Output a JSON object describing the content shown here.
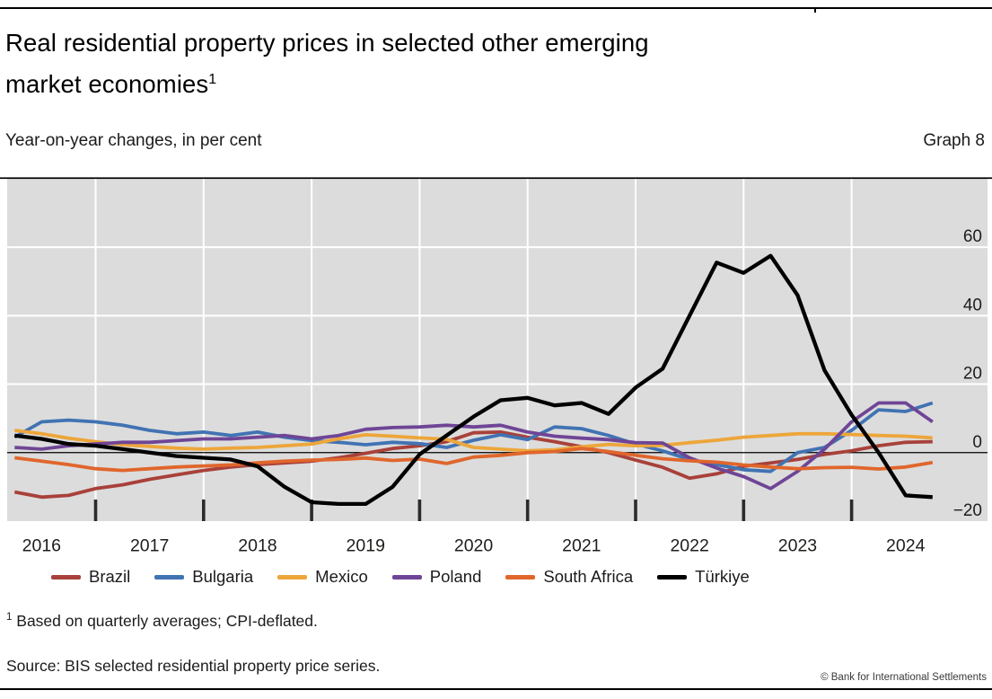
{
  "header": {
    "title_line1": "Real residential property prices in selected other emerging",
    "title_line2": "market economies",
    "title_footnote_marker": "1",
    "subtitle": "Year-on-year changes, in per cent",
    "graph_label": "Graph 8"
  },
  "chart_data": {
    "type": "line",
    "frequency": "quarterly",
    "x_start": "2016 Q1",
    "x_end": "2024 Q3",
    "plot_bg_color": "#dcdcdc",
    "gridline_color": "#ffffff",
    "zero_line": true,
    "ylim": [
      -20,
      80
    ],
    "grid_values": [
      60,
      40,
      20
    ],
    "y_ticks": [
      {
        "value": 60,
        "label": "60"
      },
      {
        "value": 40,
        "label": "40"
      },
      {
        "value": 20,
        "label": "20"
      },
      {
        "value": 0,
        "label": "0"
      },
      {
        "value": -20,
        "label": "−20"
      }
    ],
    "year_labels": [
      "2016",
      "2017",
      "2018",
      "2019",
      "2020",
      "2021",
      "2022",
      "2023",
      "2024"
    ],
    "legend_position": "bottom",
    "series": [
      {
        "name": "Brazil",
        "color": "#a8413a",
        "values": [
          -11.5,
          -13,
          -12.5,
          -10.5,
          -9.4,
          -7.8,
          -6.5,
          -5.2,
          -4.2,
          -3.5,
          -3,
          -2.5,
          -1.5,
          -0.2,
          1.2,
          2,
          3.2,
          5.8,
          6,
          4.5,
          3.2,
          1.7,
          0,
          -2.2,
          -4.3,
          -7.5,
          -6.2,
          -4,
          -3,
          -2,
          -0.5,
          0.5,
          2,
          3,
          3.2
        ]
      },
      {
        "name": "Bulgaria",
        "color": "#4173b3",
        "values": [
          4.5,
          9,
          9.5,
          9,
          8,
          6.5,
          5.5,
          6,
          5,
          6,
          4.5,
          3.5,
          3,
          2.3,
          3,
          2.6,
          1.5,
          3.6,
          5.2,
          3.8,
          7.5,
          7,
          5,
          2.5,
          0.5,
          -2,
          -3.5,
          -5,
          -5.5,
          0,
          1.5,
          6.5,
          12.5,
          12,
          14.5
        ]
      },
      {
        "name": "Mexico",
        "color": "#eda63a",
        "values": [
          6.5,
          5.5,
          4.2,
          3.2,
          2.3,
          1.8,
          1.3,
          1,
          1.3,
          1.5,
          2,
          2.5,
          4,
          5.2,
          4.8,
          4.3,
          3.9,
          1.5,
          1,
          0.5,
          0.8,
          1.7,
          2.4,
          2,
          2.1,
          2.9,
          3.6,
          4.5,
          5,
          5.5,
          5.5,
          5.3,
          5,
          4.8,
          4.3
        ]
      },
      {
        "name": "Poland",
        "color": "#6f4596",
        "values": [
          1.5,
          1,
          2,
          2.5,
          3,
          3,
          3.5,
          4,
          4,
          4.5,
          5,
          4,
          5,
          6.8,
          7.3,
          7.5,
          8,
          7.5,
          8,
          6,
          4.8,
          4.2,
          3.8,
          2.9,
          2.8,
          -1.5,
          -4.5,
          -7,
          -10.5,
          -5.5,
          1,
          9,
          14.5,
          14.5,
          9
        ]
      },
      {
        "name": "South Africa",
        "color": "#e0662c",
        "values": [
          -1.5,
          -2.5,
          -3.5,
          -4.7,
          -5.2,
          -4.7,
          -4.2,
          -3.9,
          -3.6,
          -3,
          -2.5,
          -2.2,
          -2,
          -1.6,
          -2.3,
          -1.9,
          -3.2,
          -1.3,
          -0.8,
          0,
          0.3,
          1.2,
          0.3,
          -0.8,
          -1.8,
          -2.4,
          -2.8,
          -3.6,
          -4.2,
          -4.7,
          -4.4,
          -4.3,
          -4.8,
          -4.2,
          -2.9
        ]
      },
      {
        "name": "Türkiye",
        "color": "#000000",
        "values": [
          5,
          4,
          2.5,
          2,
          1,
          0,
          -1,
          -1.5,
          -2,
          -4,
          -10,
          -14.5,
          -15,
          -15,
          -10,
          -0.5,
          5,
          10.5,
          15.3,
          16,
          13.8,
          14.5,
          11.3,
          19,
          24.5,
          40,
          55.5,
          52.5,
          57.5,
          46,
          24,
          11,
          0,
          -12.5,
          -13
        ]
      }
    ]
  },
  "footnote": {
    "marker": "1",
    "text": " Based on quarterly averages; CPI-deflated."
  },
  "source": "Source: BIS selected residential property price series.",
  "copyright": "© Bank for International Settlements"
}
